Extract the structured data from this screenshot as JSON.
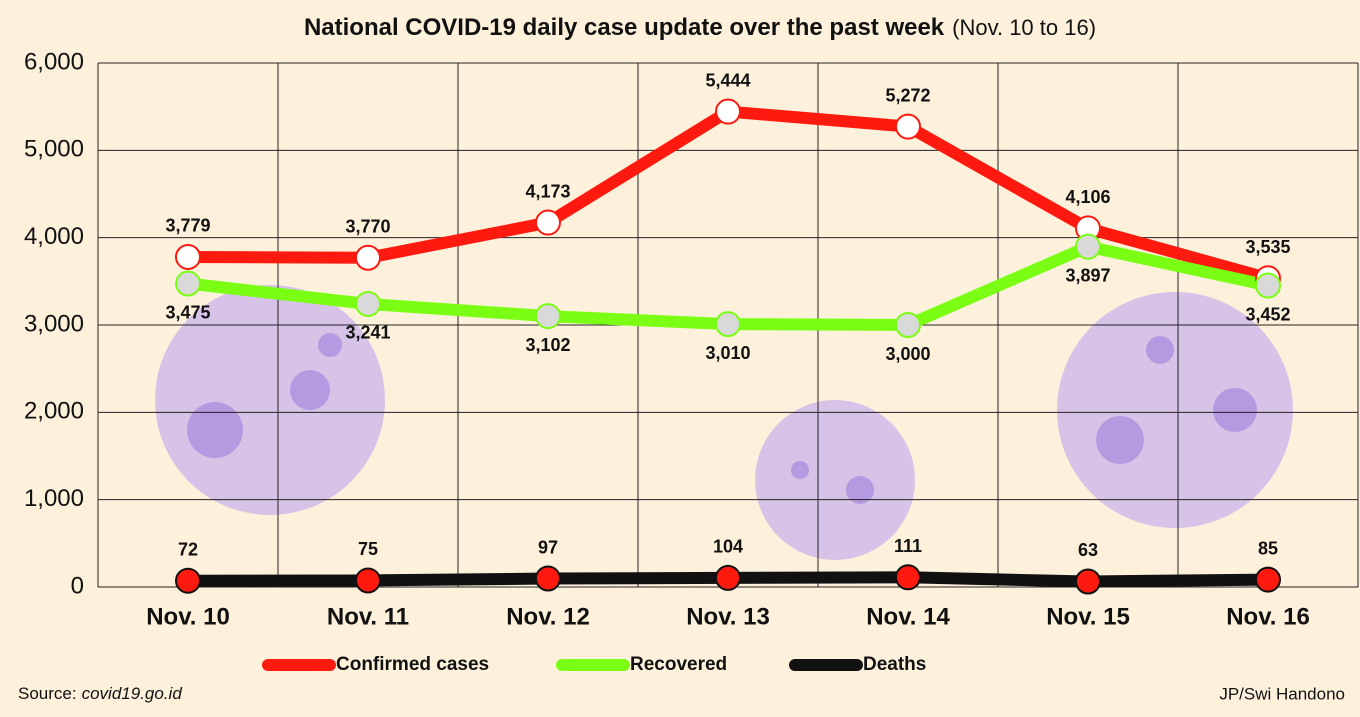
{
  "chart_data": {
    "type": "line",
    "title": "National COVID-19 daily case update over the past week",
    "subtitle": "(Nov. 10 to 16)",
    "categories": [
      "Nov. 10",
      "Nov. 11",
      "Nov. 12",
      "Nov. 13",
      "Nov. 14",
      "Nov. 15",
      "Nov. 16"
    ],
    "series": [
      {
        "name": "Confirmed cases",
        "color": "#ff1a0f",
        "marker_fill": "#ffffff",
        "values": [
          3779,
          3770,
          4173,
          5444,
          5272,
          4106,
          3535
        ],
        "value_labels": [
          "3,779",
          "3,770",
          "4,173",
          "5,444",
          "5,272",
          "4,106",
          "3,535"
        ]
      },
      {
        "name": "Recovered",
        "color": "#7aff14",
        "marker_fill": "#d9d9d9",
        "values": [
          3475,
          3241,
          3102,
          3010,
          3000,
          3897,
          3452
        ],
        "value_labels": [
          "3,475",
          "3,241",
          "3,102",
          "3,010",
          "3,000",
          "3,897",
          "3,452"
        ]
      },
      {
        "name": "Deaths",
        "color": "#111111",
        "marker_fill": "#ff1a0f",
        "values": [
          72,
          75,
          97,
          104,
          111,
          63,
          85
        ]
      }
    ],
    "ylim": [
      0,
      6000
    ],
    "yticks": [
      0,
      {
        "value": 1000,
        "label": "1,000"
      },
      {
        "value": 2000,
        "label": "2,000"
      },
      {
        "value": 3000,
        "label": "3,000"
      },
      {
        "value": 4000,
        "label": "4,000"
      },
      {
        "value": 5000,
        "label": "5,000"
      },
      {
        "value": 6000,
        "label": "6,000"
      }
    ],
    "grid": true,
    "source_label": "Source:",
    "source": "covid19.go.id",
    "credit": "JP/Swi Handono"
  }
}
